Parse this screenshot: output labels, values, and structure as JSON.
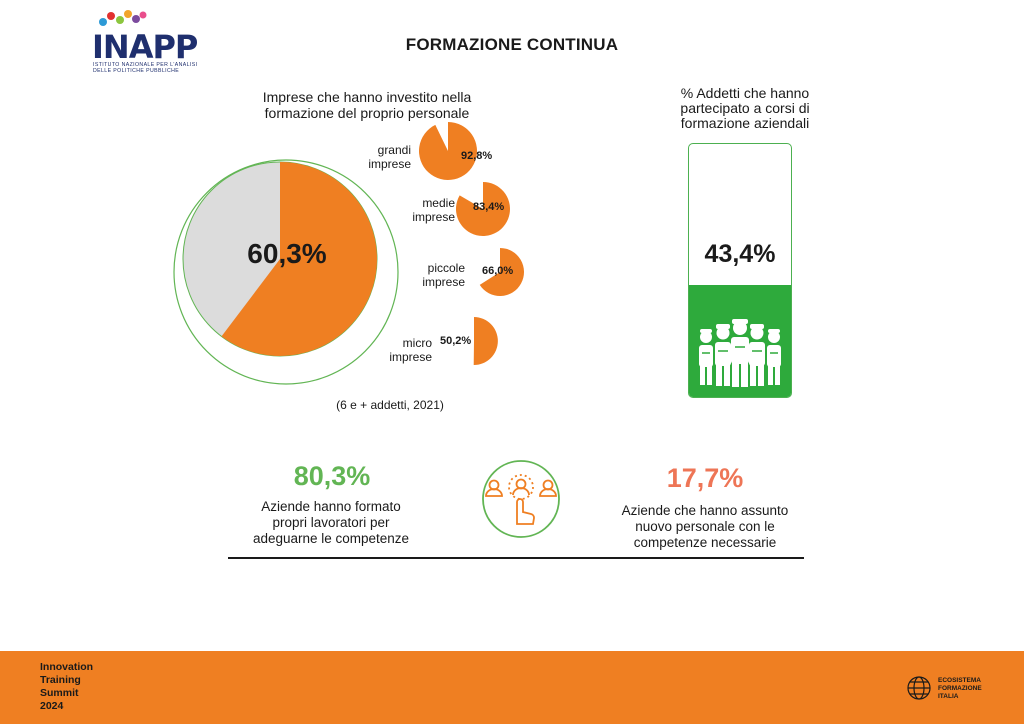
{
  "logo": {
    "name": "INAPP",
    "subtitle_line1": "ISTITUTO NAZIONALE PER L'ANALISI",
    "subtitle_line2": "DELLE POLITICHE PUBBLICHE"
  },
  "page_title": "FORMAZIONE CONTINUA",
  "left_panel": {
    "title_line1": "Imprese che hanno investito nella",
    "title_line2": "formazione del proprio personale",
    "total_pct": "60,3%",
    "total_value": 60.3,
    "note": "(6 e + addetti, 2021)",
    "segments": [
      {
        "line1": "grandi",
        "line2": "imprese",
        "value_text": "92,8%",
        "value": 92.8
      },
      {
        "line1": "medie",
        "line2": "imprese",
        "value_text": "83,4%",
        "value": 83.4
      },
      {
        "line1": "piccole",
        "line2": "imprese",
        "value_text": "66,0%",
        "value": 66.0
      },
      {
        "line1": "micro",
        "line2": "imprese",
        "value_text": "50,2%",
        "value": 50.2
      }
    ]
  },
  "right_panel": {
    "title_line1": "% Addetti che hanno",
    "title_line2": "partecipato a corsi di",
    "title_line3": "formazione aziendali",
    "pct": "43,4%",
    "value": 43.4,
    "icon": "workers-icon"
  },
  "stats": {
    "left_value": "80,3%",
    "left_line1": "Aziende hanno formato",
    "left_line2": "propri lavoratori per",
    "left_line3": "adeguarne le competenze",
    "center_icon": "hiring-click-icon",
    "right_value": "17,7%",
    "right_line1": "Aziende che hanno assunto",
    "right_line2": "nuovo personale con le",
    "right_line3": "competenze necessarie"
  },
  "footer": {
    "left_line1": "Innovation",
    "left_line2": "Training",
    "left_line3": "Summit",
    "left_line4": "2024",
    "right_line1": "ECOSISTEMA",
    "right_line2": "FORMAZIONE",
    "right_line3": "ITALIA"
  },
  "colors": {
    "orange": "#ef7f22",
    "light_grey": "#dcdcdc",
    "green": "#2eaa3c",
    "light_green": "#62b554",
    "coral": "#ee7556"
  }
}
